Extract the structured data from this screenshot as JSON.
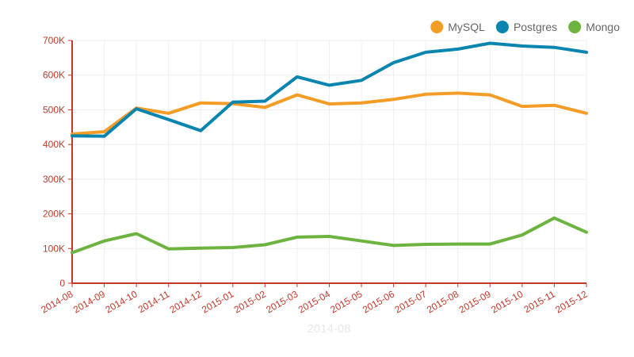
{
  "chart_data": {
    "type": "line",
    "categories": [
      "2014-08",
      "2014-09",
      "2014-10",
      "2014-11",
      "2014-12",
      "2015-01",
      "2015-02",
      "2015-03",
      "2015-04",
      "2015-05",
      "2015-06",
      "2015-07",
      "2015-08",
      "2015-09",
      "2015-10",
      "2015-11",
      "2015-12"
    ],
    "series": [
      {
        "name": "MySQL",
        "color": "#f39c26",
        "values": [
          430000,
          437000,
          505000,
          490000,
          520000,
          518000,
          507000,
          543000,
          517000,
          520000,
          530000,
          545000,
          548000,
          543000,
          510000,
          513000,
          490000
        ]
      },
      {
        "name": "Postgres",
        "color": "#0a85b0",
        "values": [
          425000,
          424000,
          503000,
          472000,
          440000,
          522000,
          525000,
          595000,
          571000,
          585000,
          636000,
          666000,
          675000,
          692000,
          684000,
          680000,
          666000
        ]
      },
      {
        "name": "Mongo",
        "color": "#6db33f",
        "values": [
          88000,
          122000,
          143000,
          99000,
          101000,
          103000,
          111000,
          133000,
          135000,
          122000,
          109000,
          112000,
          113000,
          113000,
          139000,
          188000,
          147000
        ]
      }
    ],
    "ylim": [
      0,
      700000
    ],
    "yticks": [
      {
        "value": 0,
        "label": "0"
      },
      {
        "value": 100000,
        "label": "100K"
      },
      {
        "value": 200000,
        "label": "200K"
      },
      {
        "value": 300000,
        "label": "300K"
      },
      {
        "value": 400000,
        "label": "400K"
      },
      {
        "value": 500000,
        "label": "500K"
      },
      {
        "value": 600000,
        "label": "600K"
      },
      {
        "value": 700000,
        "label": "700K"
      }
    ],
    "grid": true,
    "legend_position": "top-right",
    "axis_color": "#c0392b",
    "footer_label": "2014-08"
  }
}
